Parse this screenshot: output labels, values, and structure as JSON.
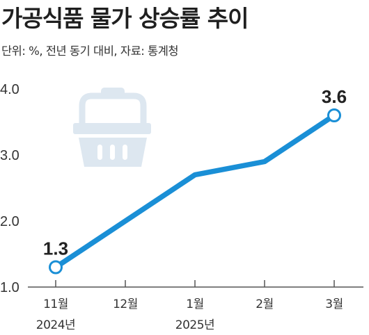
{
  "chart_data": {
    "type": "line",
    "title": "가공식품 물가 상승률 추이",
    "subtitle": "단위: %, 전년 동기 대비, 자료: 통계청",
    "categories": [
      "11월",
      "12월",
      "1월",
      "2월",
      "3월"
    ],
    "year_labels": [
      "2024년",
      "",
      "2025년",
      "",
      ""
    ],
    "series": [
      {
        "values": [
          1.3,
          2.0,
          2.7,
          2.9,
          3.6
        ]
      }
    ],
    "data_labels": [
      {
        "index": 0,
        "text": "1.3"
      },
      {
        "index": 4,
        "text": "3.6"
      }
    ],
    "yticks": [
      "4.0",
      "3.0",
      "2.0",
      "1.0"
    ],
    "ylim": [
      1.0,
      4.0
    ],
    "grid": false,
    "line_color": "#1a8fd6",
    "icon": "shopping-basket-icon",
    "icon_color": "#dde7f0"
  }
}
